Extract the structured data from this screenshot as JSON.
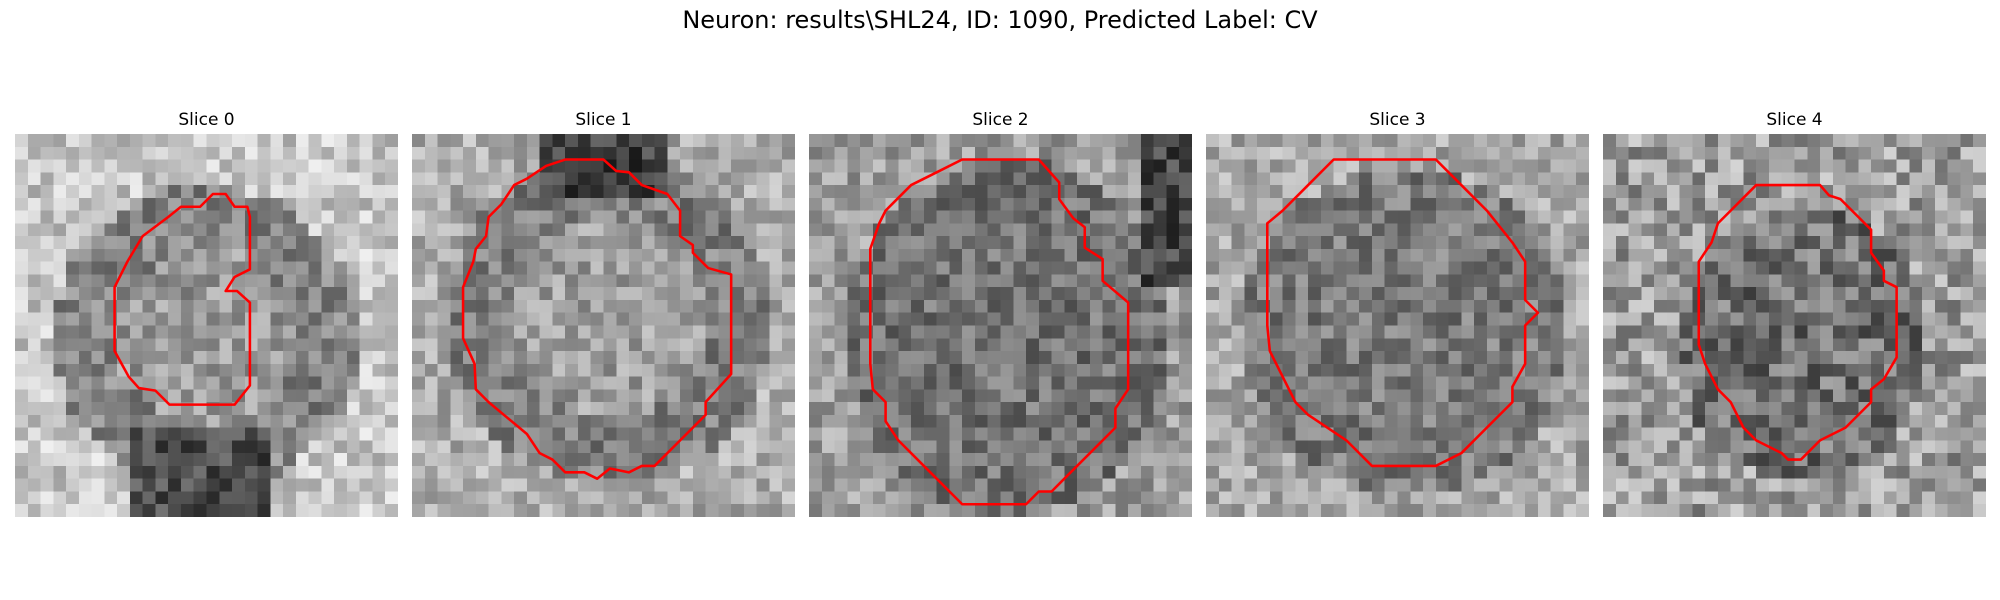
{
  "figure": {
    "title": "Neuron: results\\SHL24, ID: 1090, Predicted Label: CV",
    "contour_color": "#ff0000"
  },
  "panels": [
    {
      "title": "Slice 0",
      "contour_shape": "kidney",
      "image_tone": "light surround, darker ring"
    },
    {
      "title": "Slice 1",
      "contour_shape": "octagon",
      "image_tone": "medium gray"
    },
    {
      "title": "Slice 2",
      "contour_shape": "tilted-oval",
      "image_tone": "darker gray"
    },
    {
      "title": "Slice 3",
      "contour_shape": "octagon",
      "image_tone": "medium gray"
    },
    {
      "title": "Slice 4",
      "contour_shape": "small-octagon",
      "image_tone": "noisy gray"
    }
  ]
}
